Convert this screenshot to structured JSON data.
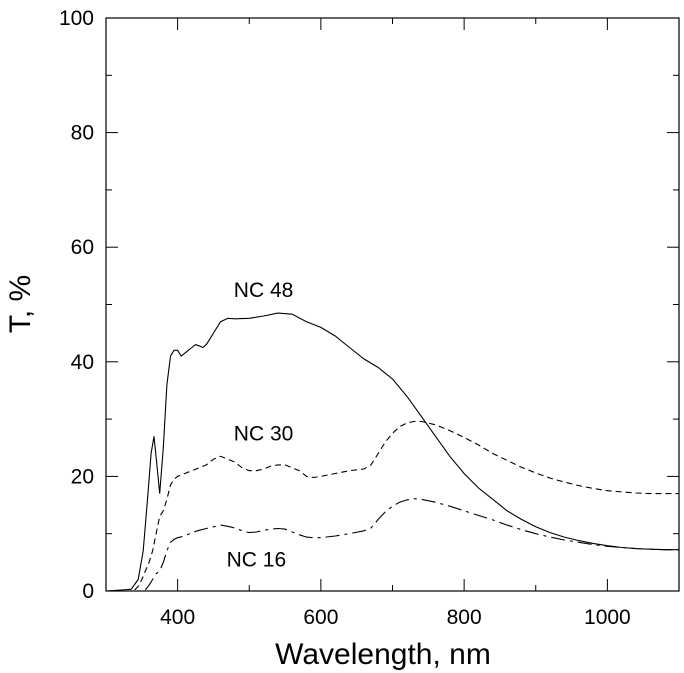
{
  "chart_data": {
    "type": "line",
    "title": "",
    "xlabel": "Wavelength, nm",
    "ylabel": "T, %",
    "xlim": [
      300,
      1100
    ],
    "ylim": [
      0,
      100
    ],
    "xticks": [
      400,
      600,
      800,
      1000
    ],
    "yticks": [
      0,
      20,
      40,
      60,
      80,
      100
    ],
    "grid": false,
    "series": [
      {
        "name": "NC 48",
        "style": "solid",
        "points": [
          [
            300,
            0
          ],
          [
            335,
            0.3
          ],
          [
            345,
            2
          ],
          [
            352,
            7
          ],
          [
            358,
            16
          ],
          [
            363,
            24
          ],
          [
            367,
            27
          ],
          [
            371,
            22
          ],
          [
            375,
            17
          ],
          [
            380,
            25
          ],
          [
            385,
            36
          ],
          [
            390,
            41
          ],
          [
            395,
            42
          ],
          [
            400,
            42
          ],
          [
            405,
            41
          ],
          [
            410,
            41.5
          ],
          [
            415,
            42
          ],
          [
            420,
            42.5
          ],
          [
            425,
            43
          ],
          [
            430,
            42.8
          ],
          [
            435,
            42.5
          ],
          [
            440,
            43
          ],
          [
            445,
            44
          ],
          [
            450,
            45
          ],
          [
            455,
            46
          ],
          [
            460,
            47
          ],
          [
            470,
            47.6
          ],
          [
            480,
            47.5
          ],
          [
            500,
            47.6
          ],
          [
            520,
            48
          ],
          [
            540,
            48.5
          ],
          [
            560,
            48.3
          ],
          [
            580,
            47
          ],
          [
            600,
            46
          ],
          [
            620,
            44.5
          ],
          [
            640,
            42.5
          ],
          [
            660,
            40.5
          ],
          [
            680,
            39
          ],
          [
            700,
            37
          ],
          [
            720,
            34
          ],
          [
            740,
            30.5
          ],
          [
            760,
            27
          ],
          [
            780,
            23.5
          ],
          [
            800,
            20.5
          ],
          [
            820,
            18
          ],
          [
            840,
            16
          ],
          [
            860,
            14
          ],
          [
            880,
            12.5
          ],
          [
            900,
            11.2
          ],
          [
            920,
            10.2
          ],
          [
            940,
            9.4
          ],
          [
            960,
            8.8
          ],
          [
            980,
            8.3
          ],
          [
            1000,
            7.9
          ],
          [
            1020,
            7.6
          ],
          [
            1040,
            7.4
          ],
          [
            1060,
            7.3
          ],
          [
            1080,
            7.2
          ],
          [
            1100,
            7.2
          ]
        ]
      },
      {
        "name": "NC 30",
        "style": "dashed",
        "points": [
          [
            340,
            0.2
          ],
          [
            345,
            0.8
          ],
          [
            350,
            2
          ],
          [
            355,
            3.5
          ],
          [
            360,
            5
          ],
          [
            365,
            7
          ],
          [
            370,
            10
          ],
          [
            375,
            13
          ],
          [
            380,
            14
          ],
          [
            385,
            16
          ],
          [
            390,
            18.5
          ],
          [
            395,
            19.5
          ],
          [
            400,
            20
          ],
          [
            410,
            20.5
          ],
          [
            420,
            21
          ],
          [
            430,
            21.5
          ],
          [
            440,
            22
          ],
          [
            450,
            23
          ],
          [
            460,
            23.5
          ],
          [
            470,
            23
          ],
          [
            480,
            22.5
          ],
          [
            490,
            21.5
          ],
          [
            500,
            21
          ],
          [
            510,
            21
          ],
          [
            520,
            21.3
          ],
          [
            530,
            21.8
          ],
          [
            540,
            22
          ],
          [
            550,
            22
          ],
          [
            560,
            21.5
          ],
          [
            570,
            21
          ],
          [
            580,
            20
          ],
          [
            590,
            19.8
          ],
          [
            600,
            20
          ],
          [
            620,
            20.5
          ],
          [
            640,
            21
          ],
          [
            660,
            21.3
          ],
          [
            670,
            22
          ],
          [
            680,
            24
          ],
          [
            690,
            26
          ],
          [
            700,
            27.5
          ],
          [
            710,
            28.7
          ],
          [
            720,
            29.3
          ],
          [
            730,
            29.6
          ],
          [
            740,
            29.6
          ],
          [
            760,
            29
          ],
          [
            780,
            28
          ],
          [
            800,
            26.8
          ],
          [
            820,
            25.5
          ],
          [
            840,
            24
          ],
          [
            860,
            22.8
          ],
          [
            880,
            21.6
          ],
          [
            900,
            20.6
          ],
          [
            920,
            19.7
          ],
          [
            940,
            19
          ],
          [
            960,
            18.4
          ],
          [
            980,
            17.9
          ],
          [
            1000,
            17.5
          ],
          [
            1020,
            17.3
          ],
          [
            1040,
            17.1
          ],
          [
            1060,
            17
          ],
          [
            1080,
            17
          ],
          [
            1100,
            17
          ]
        ]
      },
      {
        "name": "NC 16",
        "style": "dashdot",
        "points": [
          [
            355,
            0.2
          ],
          [
            360,
            1
          ],
          [
            365,
            2
          ],
          [
            370,
            3
          ],
          [
            375,
            3.5
          ],
          [
            380,
            5
          ],
          [
            385,
            7
          ],
          [
            390,
            8.5
          ],
          [
            395,
            9
          ],
          [
            400,
            9.3
          ],
          [
            410,
            9.6
          ],
          [
            420,
            10.2
          ],
          [
            430,
            10.6
          ],
          [
            440,
            10.9
          ],
          [
            450,
            11.2
          ],
          [
            460,
            11.5
          ],
          [
            470,
            11.3
          ],
          [
            480,
            11
          ],
          [
            490,
            10.5
          ],
          [
            500,
            10.2
          ],
          [
            510,
            10.3
          ],
          [
            520,
            10.6
          ],
          [
            530,
            10.8
          ],
          [
            540,
            10.9
          ],
          [
            550,
            10.8
          ],
          [
            560,
            10.3
          ],
          [
            570,
            9.8
          ],
          [
            580,
            9.4
          ],
          [
            590,
            9.3
          ],
          [
            600,
            9.3
          ],
          [
            620,
            9.6
          ],
          [
            640,
            10
          ],
          [
            660,
            10.5
          ],
          [
            670,
            11
          ],
          [
            680,
            12.5
          ],
          [
            690,
            13.8
          ],
          [
            700,
            14.8
          ],
          [
            710,
            15.5
          ],
          [
            720,
            15.9
          ],
          [
            730,
            16.1
          ],
          [
            740,
            16
          ],
          [
            760,
            15.5
          ],
          [
            780,
            14.8
          ],
          [
            800,
            14
          ],
          [
            820,
            13.2
          ],
          [
            840,
            12.4
          ],
          [
            860,
            11.5
          ],
          [
            880,
            10.7
          ],
          [
            900,
            10
          ],
          [
            920,
            9.4
          ],
          [
            940,
            8.9
          ],
          [
            960,
            8.5
          ],
          [
            980,
            8.1
          ],
          [
            1000,
            7.8
          ],
          [
            1020,
            7.6
          ],
          [
            1040,
            7.4
          ],
          [
            1060,
            7.3
          ],
          [
            1080,
            7.2
          ],
          [
            1100,
            7.2
          ]
        ]
      }
    ],
    "annotations": [
      {
        "text": "NC 48",
        "x": 520,
        "y": 52.5
      },
      {
        "text": "NC 30",
        "x": 520,
        "y": 27.5
      },
      {
        "text": "NC 16",
        "x": 510,
        "y": 5.5
      }
    ]
  }
}
